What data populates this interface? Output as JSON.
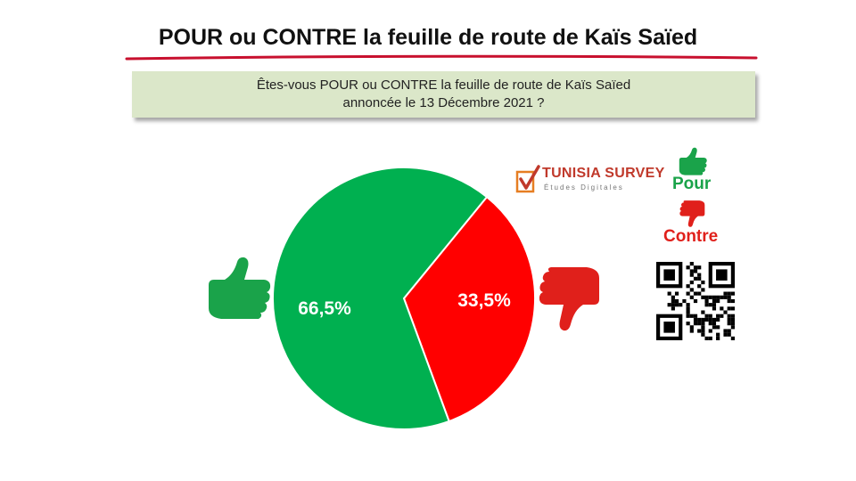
{
  "header": {
    "title": "POUR ou CONTRE la feuille de route de Kaïs Saïed"
  },
  "question": {
    "line1": "Êtes-vous POUR ou CONTRE la feuille de route de Kaïs Saïed",
    "line2": "annoncée le 13 Décembre 2021 ?"
  },
  "brand": {
    "name": "TUNISIA SURVEY",
    "tagline": "Études Digitales",
    "color": "#c0392b"
  },
  "legend": {
    "pour_label": "Pour",
    "contre_label": "Contre",
    "pour_color": "#1aa34a",
    "contre_color": "#e0201b",
    "pour_icon": "thumbs-up-icon",
    "contre_icon": "thumbs-down-icon",
    "qr_icon": "qr-code-icon"
  },
  "chart_data": {
    "type": "pie",
    "title": "",
    "slices": [
      {
        "name": "Pour",
        "value": 66.5,
        "label": "66,5%",
        "color": "#00b050"
      },
      {
        "name": "Contre",
        "value": 33.5,
        "label": "33,5%",
        "color": "#ff0000"
      }
    ]
  }
}
